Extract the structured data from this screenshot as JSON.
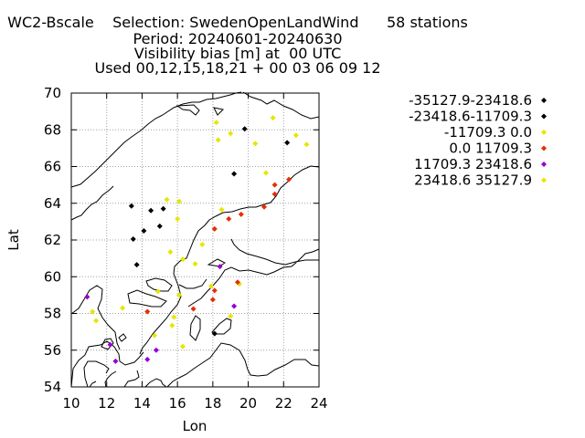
{
  "header": {
    "line1": "WC2-Bscale    Selection: SwedenOpenLandWind      58 stations",
    "line2": "Period: 20240601-20240630",
    "line3": "Visibility bias [m] at  00 UTC",
    "line4": "Used 00,12,15,18,21 + 00 03 06 09 12"
  },
  "chart_data": {
    "type": "scatter",
    "xlabel": "Lon",
    "ylabel": "Lat",
    "xlim": [
      10,
      24
    ],
    "ylim": [
      54,
      70
    ],
    "xticks": [
      "10",
      "12",
      "14",
      "16",
      "18",
      "20",
      "22",
      "24"
    ],
    "yticks": [
      "54",
      "56",
      "58",
      "60",
      "62",
      "64",
      "66",
      "68",
      "70"
    ],
    "grid": true,
    "legend_position": "right",
    "series": [
      {
        "name": "-35127.9-23418.6",
        "color": "#000000",
        "points": []
      },
      {
        "name": "-23418.6-11709.3",
        "color": "#000000",
        "points": [
          [
            13.4,
            63.85
          ],
          [
            13.5,
            62.05
          ],
          [
            13.7,
            60.65
          ],
          [
            14.1,
            62.5
          ],
          [
            14.5,
            63.6
          ],
          [
            15.0,
            62.75
          ],
          [
            15.2,
            63.7
          ],
          [
            19.2,
            65.6
          ],
          [
            19.8,
            68.05
          ],
          [
            22.2,
            67.3
          ],
          [
            18.1,
            56.9
          ]
        ]
      },
      {
        "name": "-11709.3 0.0",
        "color": "#e6e600",
        "points": [
          [
            15.4,
            64.2
          ],
          [
            16.1,
            64.1
          ],
          [
            16.0,
            63.15
          ],
          [
            15.6,
            61.35
          ],
          [
            16.3,
            60.95
          ],
          [
            17.0,
            60.7
          ],
          [
            17.4,
            61.75
          ],
          [
            18.2,
            68.4
          ],
          [
            18.3,
            67.45
          ],
          [
            18.5,
            63.65
          ],
          [
            19.0,
            67.8
          ],
          [
            20.4,
            67.25
          ],
          [
            21.0,
            65.65
          ],
          [
            21.4,
            68.65
          ],
          [
            22.7,
            67.7
          ],
          [
            23.3,
            67.2
          ],
          [
            14.9,
            59.2
          ],
          [
            16.1,
            59.0
          ],
          [
            17.9,
            59.5
          ],
          [
            19.5,
            59.6
          ],
          [
            11.2,
            58.1
          ],
          [
            11.4,
            57.6
          ],
          [
            12.9,
            58.3
          ],
          [
            14.7,
            56.8
          ],
          [
            15.8,
            57.8
          ],
          [
            15.7,
            57.35
          ],
          [
            16.3,
            56.2
          ],
          [
            19.0,
            57.85
          ]
        ]
      },
      {
        "name": "0.0 11709.3",
        "color": "#e62e00",
        "points": [
          [
            14.3,
            58.1
          ],
          [
            16.9,
            58.25
          ],
          [
            18.0,
            58.75
          ],
          [
            18.1,
            59.25
          ],
          [
            19.4,
            59.7
          ],
          [
            18.1,
            62.6
          ],
          [
            18.9,
            63.15
          ],
          [
            19.6,
            63.4
          ],
          [
            20.9,
            63.8
          ],
          [
            21.5,
            64.5
          ],
          [
            21.5,
            65.0
          ],
          [
            22.3,
            65.3
          ]
        ]
      },
      {
        "name": "11709.3 23418.6",
        "color": "#9400d3",
        "points": [
          [
            10.9,
            58.9
          ],
          [
            12.2,
            56.3
          ],
          [
            12.5,
            55.4
          ],
          [
            14.3,
            55.5
          ],
          [
            14.8,
            56.0
          ],
          [
            18.4,
            60.55
          ],
          [
            19.2,
            58.4
          ]
        ]
      },
      {
        "name": "23418.6 35127.9",
        "color": "#e6e600",
        "points": []
      }
    ]
  }
}
